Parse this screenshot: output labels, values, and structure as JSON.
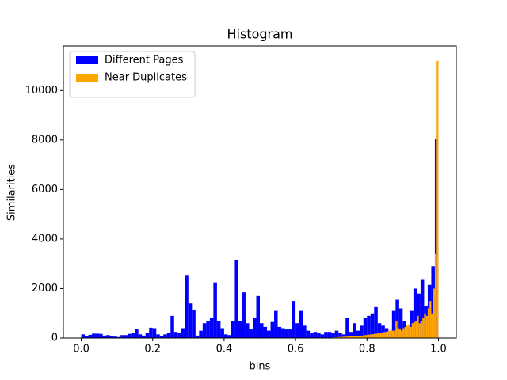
{
  "chart_data": {
    "type": "histogram",
    "title": "Histogram",
    "xlabel": "bins",
    "ylabel": "Similarities",
    "legend": "upper left",
    "xlim": [
      -0.05,
      1.05
    ],
    "ylim": [
      0,
      11800
    ],
    "xticks": [
      {
        "value": 0,
        "label": "0.0"
      },
      0.2,
      0.4,
      0.6,
      0.8,
      {
        "value": 1,
        "label": "1.0"
      }
    ],
    "yticks": [
      0,
      2000,
      4000,
      6000,
      8000,
      10000
    ],
    "series": [
      {
        "name": "Different Pages",
        "color": "#0000ff",
        "bins": [
          0,
          0.01,
          0.02,
          0.03,
          0.04,
          0.05,
          0.06,
          0.07,
          0.08,
          0.09,
          0.1,
          0.11,
          0.12,
          0.13,
          0.14,
          0.15,
          0.16,
          0.17,
          0.18,
          0.19,
          0.2,
          0.21,
          0.22,
          0.23,
          0.24,
          0.25,
          0.26,
          0.27,
          0.28,
          0.29,
          0.3,
          0.31,
          0.32,
          0.33,
          0.34,
          0.35,
          0.36,
          0.37,
          0.38,
          0.39,
          0.4,
          0.41,
          0.42,
          0.43,
          0.44,
          0.45,
          0.46,
          0.47,
          0.48,
          0.49,
          0.5,
          0.51,
          0.52,
          0.53,
          0.54,
          0.55,
          0.56,
          0.57,
          0.58,
          0.59,
          0.6,
          0.61,
          0.62,
          0.63,
          0.64,
          0.65,
          0.66,
          0.67,
          0.68,
          0.69,
          0.7,
          0.71,
          0.72,
          0.73,
          0.74,
          0.75,
          0.76,
          0.77,
          0.78,
          0.79,
          0.8,
          0.81,
          0.82,
          0.83,
          0.84,
          0.85,
          0.86,
          0.87,
          0.88,
          0.89,
          0.9,
          0.91,
          0.92,
          0.93,
          0.94,
          0.95,
          0.96,
          0.97,
          0.98,
          0.99,
          1
        ],
        "values": [
          150,
          80,
          130,
          180,
          180,
          170,
          100,
          120,
          90,
          60,
          40,
          120,
          120,
          170,
          200,
          350,
          150,
          100,
          200,
          420,
          400,
          150,
          80,
          150,
          200,
          900,
          250,
          200,
          400,
          2550,
          1400,
          1150,
          100,
          300,
          600,
          700,
          800,
          2250,
          700,
          400,
          150,
          120,
          700,
          3150,
          700,
          1850,
          600,
          350,
          800,
          1700,
          600,
          450,
          300,
          650,
          1100,
          450,
          400,
          350,
          350,
          1500,
          600,
          1100,
          500,
          300,
          200,
          250,
          200,
          150,
          250,
          250,
          200,
          300,
          200,
          150,
          800,
          250,
          600,
          300,
          500,
          800,
          900,
          1000,
          1250,
          600,
          500,
          400,
          250,
          1100,
          1550,
          1200,
          700,
          400,
          1100,
          2000,
          1800,
          2350,
          1300,
          2150,
          2900,
          8050
        ]
      },
      {
        "name": "Near Duplicates",
        "color": "#ffa500",
        "bins": [
          0.7,
          0.705,
          0.71,
          0.715,
          0.72,
          0.725,
          0.73,
          0.735,
          0.74,
          0.745,
          0.75,
          0.755,
          0.76,
          0.765,
          0.77,
          0.775,
          0.78,
          0.785,
          0.79,
          0.795,
          0.8,
          0.805,
          0.81,
          0.815,
          0.82,
          0.825,
          0.83,
          0.835,
          0.84,
          0.845,
          0.85,
          0.855,
          0.86,
          0.865,
          0.87,
          0.875,
          0.88,
          0.885,
          0.89,
          0.895,
          0.9,
          0.905,
          0.91,
          0.915,
          0.92,
          0.925,
          0.93,
          0.935,
          0.94,
          0.945,
          0.95,
          0.955,
          0.96,
          0.965,
          0.97,
          0.975,
          0.98,
          0.985,
          0.99,
          0.995,
          1
        ],
        "values": [
          20,
          20,
          30,
          30,
          40,
          40,
          50,
          50,
          60,
          60,
          70,
          70,
          80,
          80,
          90,
          90,
          100,
          100,
          120,
          120,
          130,
          140,
          150,
          160,
          170,
          180,
          200,
          200,
          220,
          250,
          250,
          280,
          300,
          350,
          300,
          300,
          700,
          400,
          350,
          300,
          400,
          450,
          500,
          550,
          450,
          600,
          650,
          700,
          900,
          600,
          700,
          800,
          1000,
          900,
          1200,
          1500,
          1000,
          2000,
          3400,
          11200
        ]
      }
    ]
  }
}
